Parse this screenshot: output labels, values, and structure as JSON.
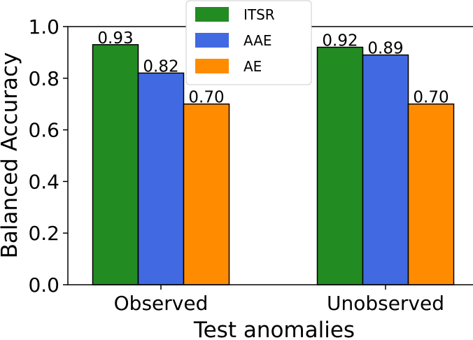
{
  "chart_data": {
    "type": "bar",
    "categories": [
      "Observed",
      "Unobserved"
    ],
    "series": [
      {
        "name": "ITSR",
        "values": [
          0.93,
          0.92
        ],
        "labels": [
          "0.93",
          "0.92"
        ],
        "color": "#228b22"
      },
      {
        "name": "AAE",
        "values": [
          0.82,
          0.89
        ],
        "labels": [
          "0.82",
          "0.89"
        ],
        "color": "#4169e1"
      },
      {
        "name": "AE",
        "values": [
          0.7,
          0.7
        ],
        "labels": [
          "0.70",
          "0.70"
        ],
        "color": "#ff8c00"
      }
    ],
    "xlabel": "Test anomalies",
    "ylabel": "Balanced Accuracy",
    "ylim": [
      0.0,
      1.0
    ],
    "yticks": [
      0.0,
      0.2,
      0.4,
      0.6,
      0.8,
      1.0
    ],
    "ytick_labels": [
      "0.0",
      "0.2",
      "0.4",
      "0.6",
      "0.8",
      "1.0"
    ],
    "grid": false,
    "legend_position": "top-center"
  }
}
